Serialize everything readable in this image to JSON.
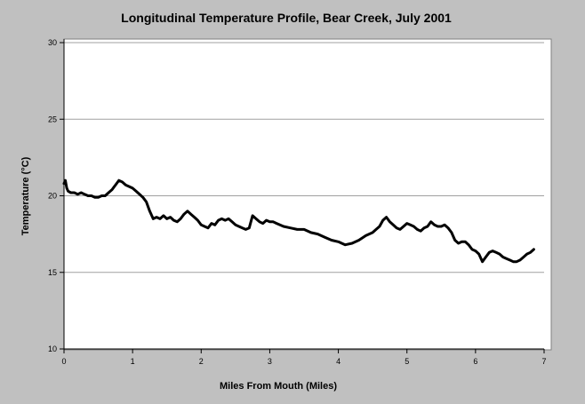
{
  "chart_data": {
    "type": "line",
    "title": "Longitudinal Temperature Profile, Bear Creek, July 2001",
    "xlabel": "Miles From Mouth (Miles)",
    "ylabel": "Temperature (°C)",
    "xlim": [
      0,
      7
    ],
    "ylim": [
      10,
      30
    ],
    "xticks": [
      0,
      1,
      2,
      3,
      4,
      5,
      6,
      7
    ],
    "yticks": [
      10,
      15,
      20,
      25,
      30
    ],
    "grid": "horizontal",
    "line_color": "#000000",
    "series": [
      {
        "x": [
          0,
          0.02,
          0.04,
          0.06,
          0.1,
          0.15,
          0.2,
          0.25,
          0.3,
          0.35,
          0.4,
          0.45,
          0.5,
          0.55,
          0.6,
          0.65,
          0.7,
          0.75,
          0.8,
          0.85,
          0.9,
          0.95,
          1.0,
          1.05,
          1.1,
          1.15,
          1.2,
          1.25,
          1.3,
          1.35,
          1.4,
          1.45,
          1.5,
          1.55,
          1.6,
          1.65,
          1.7,
          1.75,
          1.8,
          1.85,
          1.9,
          1.95,
          2.0,
          2.05,
          2.1,
          2.15,
          2.2,
          2.25,
          2.3,
          2.35,
          2.4,
          2.45,
          2.5,
          2.55,
          2.6,
          2.65,
          2.7,
          2.75,
          2.8,
          2.85,
          2.9,
          2.95,
          3.0,
          3.05,
          3.1,
          3.2,
          3.3,
          3.4,
          3.5,
          3.6,
          3.7,
          3.8,
          3.9,
          4.0,
          4.1,
          4.2,
          4.3,
          4.4,
          4.5,
          4.55,
          4.6,
          4.65,
          4.7,
          4.75,
          4.8,
          4.85,
          4.9,
          4.95,
          5.0,
          5.05,
          5.1,
          5.15,
          5.2,
          5.25,
          5.3,
          5.35,
          5.4,
          5.45,
          5.5,
          5.55,
          5.6,
          5.65,
          5.7,
          5.75,
          5.8,
          5.85,
          5.9,
          5.95,
          6.0,
          6.05,
          6.1,
          6.15,
          6.2,
          6.25,
          6.3,
          6.35,
          6.4,
          6.45,
          6.5,
          6.55,
          6.6,
          6.65,
          6.7,
          6.75,
          6.8,
          6.85
        ],
        "y": [
          20.8,
          21.0,
          20.5,
          20.3,
          20.2,
          20.2,
          20.1,
          20.2,
          20.1,
          20.0,
          20.0,
          19.9,
          19.9,
          20.0,
          20.0,
          20.2,
          20.4,
          20.7,
          21.0,
          20.9,
          20.7,
          20.6,
          20.5,
          20.3,
          20.1,
          19.9,
          19.6,
          19.0,
          18.5,
          18.6,
          18.5,
          18.7,
          18.5,
          18.6,
          18.4,
          18.3,
          18.5,
          18.8,
          19.0,
          18.8,
          18.6,
          18.4,
          18.1,
          18.0,
          17.9,
          18.2,
          18.1,
          18.4,
          18.5,
          18.4,
          18.5,
          18.3,
          18.1,
          18.0,
          17.9,
          17.8,
          17.9,
          18.7,
          18.5,
          18.3,
          18.2,
          18.4,
          18.3,
          18.3,
          18.2,
          18.0,
          17.9,
          17.8,
          17.8,
          17.6,
          17.5,
          17.3,
          17.1,
          17.0,
          16.8,
          16.9,
          17.1,
          17.4,
          17.6,
          17.8,
          18.0,
          18.4,
          18.6,
          18.3,
          18.1,
          17.9,
          17.8,
          18.0,
          18.2,
          18.1,
          18.0,
          17.8,
          17.7,
          17.9,
          18.0,
          18.3,
          18.1,
          18.0,
          18.0,
          18.1,
          17.9,
          17.6,
          17.1,
          16.9,
          17.0,
          17.0,
          16.8,
          16.5,
          16.4,
          16.2,
          15.7,
          16.0,
          16.3,
          16.4,
          16.3,
          16.2,
          16.0,
          15.9,
          15.8,
          15.7,
          15.7,
          15.8,
          16.0,
          16.2,
          16.3,
          16.5
        ]
      }
    ]
  }
}
